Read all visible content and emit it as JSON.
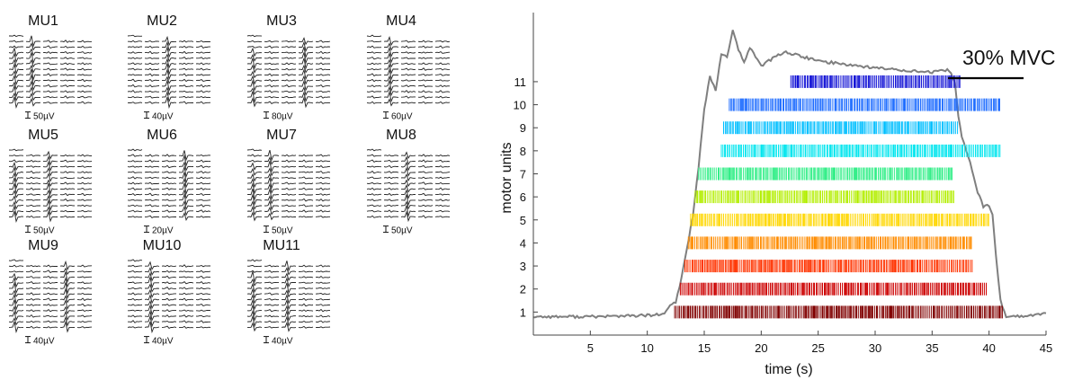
{
  "templates": {
    "title": "",
    "units": [
      {
        "label": "MU1",
        "scale": "50µV"
      },
      {
        "label": "MU2",
        "scale": "40µV"
      },
      {
        "label": "MU3",
        "scale": "80µV"
      },
      {
        "label": "MU4",
        "scale": "60µV"
      },
      {
        "label": "MU5",
        "scale": "50µV"
      },
      {
        "label": "MU6",
        "scale": "20µV"
      },
      {
        "label": "MU7",
        "scale": "50µV"
      },
      {
        "label": "MU8",
        "scale": "50µV"
      },
      {
        "label": "MU9",
        "scale": "40µV"
      },
      {
        "label": "MU10",
        "scale": "40µV"
      },
      {
        "label": "MU11",
        "scale": "40µV"
      }
    ]
  },
  "chart_data": {
    "type": "scatter",
    "title": "",
    "xlabel": "time (s)",
    "ylabel": "motor units",
    "xlim": [
      0,
      45
    ],
    "ylim": [
      0,
      14
    ],
    "xticks": [
      5,
      10,
      15,
      20,
      25,
      30,
      35,
      40,
      45
    ],
    "yticks": [
      1,
      2,
      3,
      4,
      5,
      6,
      7,
      8,
      9,
      10,
      11
    ],
    "annotation": "30% MVC",
    "grid": false,
    "force_trace": {
      "name": "force",
      "color": "#7f7f7f",
      "x": [
        0,
        5,
        10,
        11.5,
        12,
        12.5,
        13,
        13.5,
        14,
        14.5,
        15,
        15.5,
        16,
        16.5,
        17,
        17.5,
        18,
        18.5,
        19,
        20,
        22,
        25,
        30,
        35,
        36.5,
        37,
        37.3,
        37.6,
        38,
        38.5,
        39,
        39.5,
        40,
        40.3,
        40.6,
        41,
        41.5,
        42,
        43,
        45
      ],
      "y": [
        0.8,
        0.8,
        0.85,
        0.9,
        1.3,
        1.4,
        2.5,
        3.8,
        5.2,
        7.3,
        9.8,
        11.2,
        10.6,
        12.2,
        12.1,
        13.2,
        12.4,
        11.8,
        12.5,
        11.7,
        12.3,
        11.9,
        11.6,
        11.4,
        11.5,
        11.0,
        9.5,
        8.6,
        8.0,
        7.2,
        6.2,
        5.6,
        5.6,
        5.2,
        3.5,
        1.5,
        0.8,
        0.85,
        0.8,
        0.95
      ]
    },
    "series": [
      {
        "unit": 1,
        "start": 12.4,
        "end": 41.2,
        "color": "#800000"
      },
      {
        "unit": 2,
        "start": 12.9,
        "end": 39.8,
        "color": "#cc0000"
      },
      {
        "unit": 3,
        "start": 13.3,
        "end": 38.6,
        "color": "#ff3300"
      },
      {
        "unit": 4,
        "start": 13.6,
        "end": 38.5,
        "color": "#ff8c00"
      },
      {
        "unit": 5,
        "start": 13.8,
        "end": 40.0,
        "color": "#ffd700"
      },
      {
        "unit": 6,
        "start": 14.2,
        "end": 37.0,
        "color": "#b3ee00"
      },
      {
        "unit": 7,
        "start": 14.5,
        "end": 36.8,
        "color": "#33ee88"
      },
      {
        "unit": 8,
        "start": 16.5,
        "end": 41.0,
        "color": "#00e5ee"
      },
      {
        "unit": 9,
        "start": 16.7,
        "end": 37.3,
        "color": "#00bfff"
      },
      {
        "unit": 10,
        "start": 17.2,
        "end": 41.0,
        "color": "#1e6cff"
      },
      {
        "unit": 11,
        "start": 22.6,
        "end": 37.5,
        "color": "#1515d6"
      }
    ]
  }
}
